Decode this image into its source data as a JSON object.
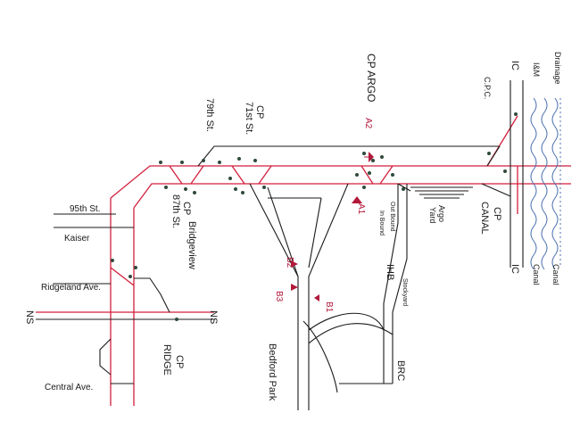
{
  "colors": {
    "red": "#d31f3d",
    "black": "#1a1a1a",
    "water": "#4a6fb0",
    "dot": "#2f4a3a",
    "marker": "#b2183a"
  },
  "labels": {
    "cp_argo": "CP ARGO",
    "seventy_nine": "79th St.",
    "seventy_one_cp": "CP",
    "seventy_one": "71st St.",
    "ic_top": "IC",
    "cpc": "C.P.C.",
    "iandm": "I&M",
    "drainage": "Drainage",
    "a2": "A2",
    "a1": "A1",
    "ninety_five": "95th St.",
    "kaiser": "Kaiser",
    "eighty_seven_cp": "CP",
    "eighty_seven": "87th St.",
    "bridgeview": "Bridgeview",
    "ridgeland": "Ridgeland Ave.",
    "ns_left": "NS",
    "ns_right": "NS",
    "cp_ridge_cp": "CP",
    "cp_ridge": "RIDGE",
    "central": "Central Ave.",
    "b1": "B1",
    "b2": "B2",
    "b3": "B3",
    "bedford": "Bedford Park",
    "ihb": "IHB",
    "outbound": "Out Bound",
    "inbound": "In Bound",
    "argo_yard": "Argo",
    "argo_yard2": "Yard",
    "cp_canal_cp": "CP",
    "cp_canal": "CANAL",
    "stockyard": "Stockyard",
    "brc": "BRC",
    "ic_bottom": "IC",
    "canal_left": "Canal",
    "canal_right": "Canal"
  }
}
